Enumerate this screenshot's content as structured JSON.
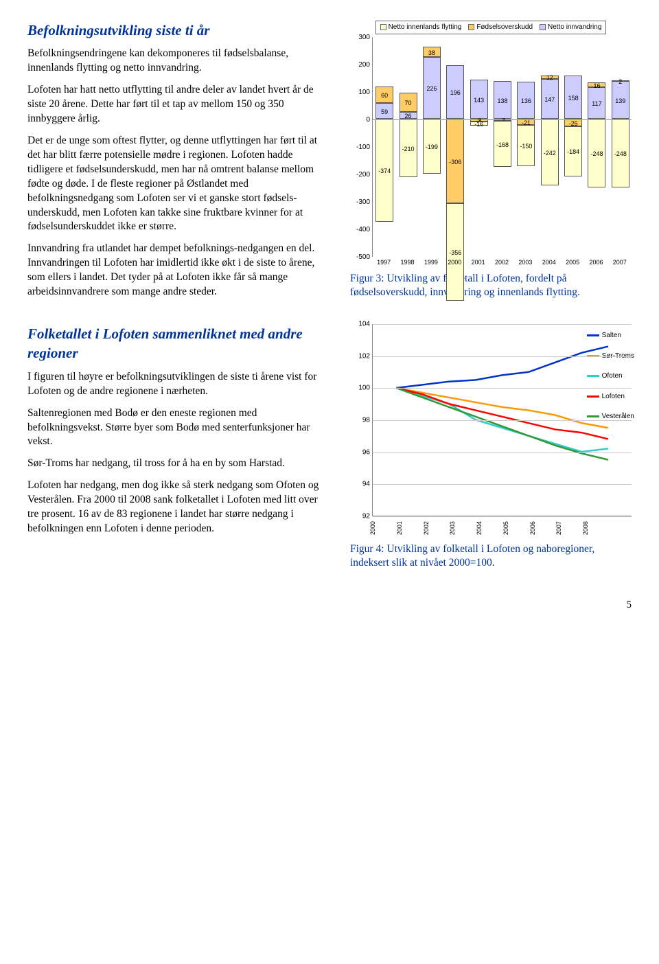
{
  "section1": {
    "heading": "Befolkningsutvikling siste ti år",
    "p1": "Befolkningsendringene kan dekomponeres til fødselsbalanse, innenlands flytting og netto innvandring.",
    "p2": "Lofoten har hatt netto utflytting til andre deler av landet hvert år de siste 20 årene. Dette har ført til et tap av mellom 150 og 350 innbyggere årlig.",
    "p3": "Det er de unge som oftest flytter, og denne utflyttingen har ført til at det har blitt færre potensielle mødre i regionen. Lofoten hadde tidligere et fødselsunderskudd, men har nå omtrent balanse mellom fødte og døde. I de fleste regioner på Østlandet med befolkningsnedgang som Lofoten ser vi et ganske stort fødsels-underskudd, men Lofoten kan takke sine fruktbare kvinner for at fødselsunderskuddet ikke er større.",
    "p4": "Innvandring fra utlandet har dempet befolknings-nedgangen en del. Innvandringen til Lofoten har imidlertid ikke økt i de siste to årene, som ellers i landet. Det tyder på at Lofoten ikke får så mange arbeidsinnvandrere som mange andre steder."
  },
  "chart1": {
    "legend": [
      "Netto innenlands flytting",
      "Fødselsoverskudd",
      "Netto innvandring"
    ],
    "colors": {
      "flytting": "#ffffcc",
      "fodsel": "#ffcc66",
      "innvandring": "#ccccff"
    },
    "ymin": -500,
    "ymax": 300,
    "ystep": 100,
    "years": [
      "1997",
      "1998",
      "1999",
      "2000",
      "2001",
      "2002",
      "2003",
      "2004",
      "2005",
      "2006",
      "2007"
    ],
    "innvandring": [
      59,
      26,
      226,
      196,
      143,
      138,
      136,
      147,
      158,
      117,
      139
    ],
    "fodsel": [
      60,
      70,
      38,
      -306,
      -8,
      -7,
      -21,
      12,
      -25,
      16,
      2
    ],
    "flytting": [
      -374,
      -210,
      -199,
      -356,
      -16,
      -168,
      -150,
      -242,
      -184,
      -248,
      -248
    ],
    "caption": "Figur 3: Utvikling av folketall i Lofoten, fordelt på fødselsoverskudd, innvandring og innenlands flytting."
  },
  "section2": {
    "heading": "Folketallet i Lofoten sammenliknet med andre regioner",
    "p1": "I figuren til høyre er befolkningsutviklingen de siste ti årene vist for Lofoten og de andre regionene i nærheten.",
    "p2": "Saltenregionen med Bodø er den eneste regionen med befolkningsvekst. Større byer som Bodø med senterfunksjoner har vekst.",
    "p3": "Sør-Troms har nedgang, til tross for å ha en by som Harstad.",
    "p4": "Lofoten har nedgang, men dog ikke så sterk nedgang som Ofoten og Vesterålen. Fra 2000 til 2008 sank folketallet i Lofoten med litt over tre prosent. 16 av de 83 regionene i landet har større nedgang i befolkningen enn Lofoten i denne perioden."
  },
  "chart2": {
    "ymin": 92,
    "ymax": 104,
    "ystep": 2,
    "years": [
      "2000",
      "2001",
      "2002",
      "2003",
      "2004",
      "2005",
      "2006",
      "2007",
      "2008"
    ],
    "series": [
      {
        "name": "Salten",
        "color": "#0033cc",
        "data": [
          100,
          100.2,
          100.4,
          100.5,
          100.8,
          101.0,
          101.6,
          102.2,
          102.6
        ]
      },
      {
        "name": "Sør-Troms",
        "color": "#ff9900",
        "data": [
          100,
          99.7,
          99.4,
          99.1,
          98.8,
          98.6,
          98.3,
          97.8,
          97.5
        ]
      },
      {
        "name": "Ofoten",
        "color": "#33cccc",
        "data": [
          100,
          99.5,
          99.0,
          98.0,
          97.5,
          97.0,
          96.5,
          96.0,
          96.2
        ]
      },
      {
        "name": "Lofoten",
        "color": "#ff0000",
        "data": [
          100,
          99.6,
          99.0,
          98.6,
          98.2,
          97.8,
          97.4,
          97.2,
          96.8
        ]
      },
      {
        "name": "Vesterålen",
        "color": "#339933",
        "data": [
          100,
          99.4,
          98.8,
          98.2,
          97.6,
          97.0,
          96.4,
          95.9,
          95.5
        ]
      }
    ],
    "caption": "Figur 4: Utvikling av folketall i Lofoten og naboregioner, indeksert slik at nivået 2000=100."
  },
  "pagenum": "5"
}
